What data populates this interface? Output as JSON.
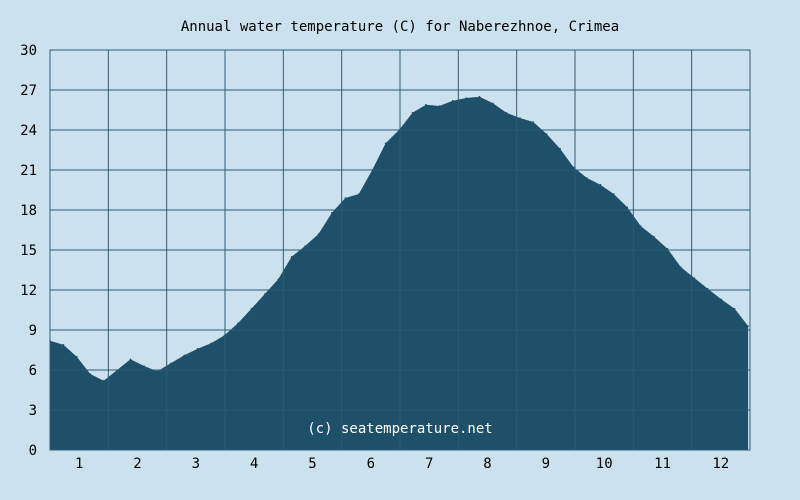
{
  "chart_data": {
    "type": "area",
    "title": "Annual water temperature (C) for Naberezhnoe, Crimea",
    "xlabel": "",
    "ylabel": "",
    "x_tick_labels": [
      "1",
      "2",
      "3",
      "4",
      "5",
      "6",
      "7",
      "8",
      "9",
      "10",
      "11",
      "12"
    ],
    "y_tick_labels": [
      "0",
      "3",
      "6",
      "9",
      "12",
      "15",
      "18",
      "21",
      "24",
      "27",
      "30"
    ],
    "ylim": [
      0,
      30
    ],
    "xlim": [
      1,
      366
    ],
    "grid": true,
    "annotation": "(c) seatemperature.net",
    "colors": {
      "background": "#cce1ee",
      "area_fill": "#1f5069",
      "grid": "#2d5d75",
      "watermark": "#ffffff"
    },
    "x_day_of_year": [
      1,
      8,
      15,
      22,
      29,
      36,
      43,
      50,
      57,
      64,
      71,
      78,
      85,
      92,
      99,
      106,
      113,
      120,
      127,
      134,
      141,
      148,
      155,
      162,
      169,
      176,
      183,
      190,
      197,
      204,
      211,
      218,
      225,
      232,
      239,
      246,
      253,
      260,
      267,
      274,
      281,
      288,
      295,
      302,
      309,
      316,
      323,
      330,
      337,
      344,
      351,
      358,
      365
    ],
    "y_temperature": [
      8.2,
      7.9,
      7.0,
      5.7,
      5.2,
      6.0,
      6.8,
      6.3,
      5.9,
      6.5,
      7.1,
      7.6,
      8.0,
      8.6,
      9.5,
      10.6,
      11.7,
      12.8,
      14.5,
      15.3,
      16.2,
      17.8,
      18.9,
      19.2,
      21.0,
      23.0,
      24.0,
      25.3,
      25.9,
      25.8,
      26.2,
      26.4,
      26.5,
      26.0,
      25.3,
      24.9,
      24.6,
      23.7,
      22.6,
      21.2,
      20.4,
      19.9,
      19.2,
      18.2,
      16.8,
      16.0,
      15.1,
      13.7,
      12.9,
      12.1,
      11.3,
      10.6,
      9.3
    ]
  }
}
